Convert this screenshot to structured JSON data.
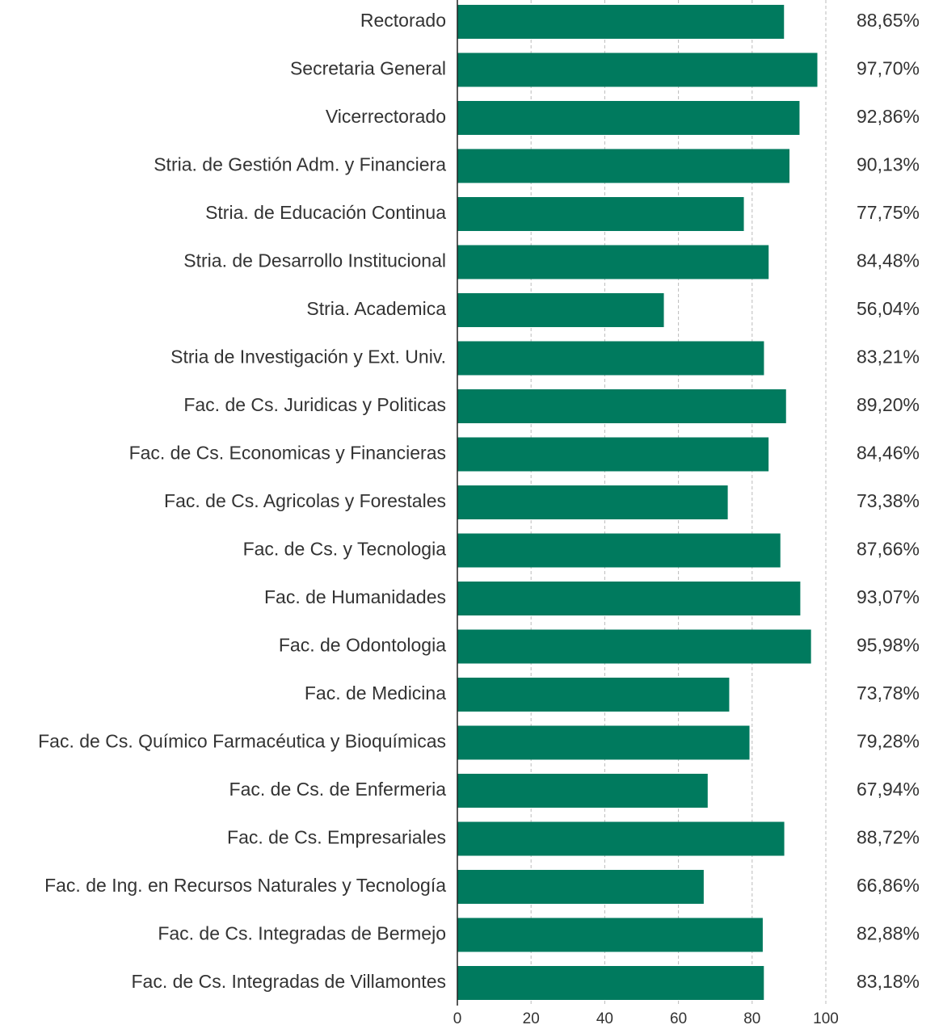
{
  "chart_data": {
    "type": "bar",
    "orientation": "horizontal",
    "categories": [
      "Rectorado",
      "Secretaria General",
      "Vicerrectorado",
      "Stria. de Gestión Adm. y Financiera",
      "Stria. de Educación Continua",
      "Stria. de Desarrollo Institucional",
      "Stria. Academica",
      "Stria de Investigación y Ext. Univ.",
      "Fac. de Cs. Juridicas y Politicas",
      "Fac. de Cs. Economicas y Financieras",
      "Fac. de Cs. Agricolas y Forestales",
      "Fac. de Cs. y Tecnologia",
      "Fac. de Humanidades",
      "Fac. de Odontologia",
      "Fac. de Medicina",
      "Fac. de Cs. Químico Farmacéutica y Bioquímicas",
      "Fac. de Cs. de Enfermeria",
      "Fac. de Cs. Empresariales",
      "Fac. de Ing. en Recursos Naturales y Tecnología",
      "Fac. de Cs. Integradas de Bermejo",
      "Fac. de Cs. Integradas de Villamontes"
    ],
    "values": [
      88.65,
      97.7,
      92.86,
      90.13,
      77.75,
      84.48,
      56.04,
      83.21,
      89.2,
      84.46,
      73.38,
      87.66,
      93.07,
      95.98,
      73.78,
      79.28,
      67.94,
      88.72,
      66.86,
      82.88,
      83.18
    ],
    "value_labels": [
      "88,65%",
      "97,70%",
      "92,86%",
      "90,13%",
      "77,75%",
      "84,48%",
      "56,04%",
      "83,21%",
      "89,20%",
      "84,46%",
      "73,38%",
      "87,66%",
      "93,07%",
      "95,98%",
      "73,78%",
      "79,28%",
      "67,94%",
      "88,72%",
      "66,86%",
      "82,88%",
      "83,18%"
    ],
    "color": "#007a5e",
    "xlim": [
      0,
      100
    ],
    "xticks": [
      0,
      20,
      40,
      60,
      80,
      100
    ],
    "grid": true
  }
}
